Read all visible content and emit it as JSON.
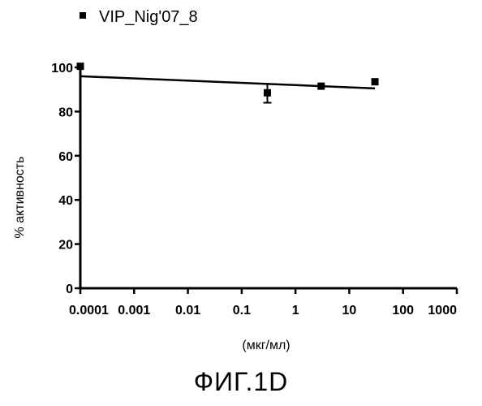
{
  "figure_label": "ФИГ.1D",
  "chart_data": {
    "type": "scatter",
    "title": "",
    "xlabel": "(мкг/мл)",
    "ylabel": "% активность",
    "x_scale": "log",
    "xlim": [
      0.0001,
      1000
    ],
    "ylim": [
      0,
      100
    ],
    "x_ticks": [
      "0.0001",
      "0.001",
      "0.01",
      "0.1",
      "1",
      "10",
      "100",
      "1000"
    ],
    "y_ticks": [
      "0",
      "20",
      "40",
      "60",
      "80",
      "100"
    ],
    "legend": {
      "position": "top-left"
    },
    "grid": false,
    "series": [
      {
        "name": "VIP_Nig'07_8",
        "marker": "square",
        "color": "#000000",
        "points": [
          {
            "x": 0.0001,
            "y": 100.5,
            "err": 0
          },
          {
            "x": 0.3,
            "y": 88.5,
            "err": 4.5
          },
          {
            "x": 3,
            "y": 91.5,
            "err": 0
          },
          {
            "x": 30,
            "y": 93.5,
            "err": 0
          }
        ],
        "fit_line": {
          "x": [
            0.0001,
            30
          ],
          "y": [
            96,
            90.5
          ]
        }
      }
    ]
  }
}
